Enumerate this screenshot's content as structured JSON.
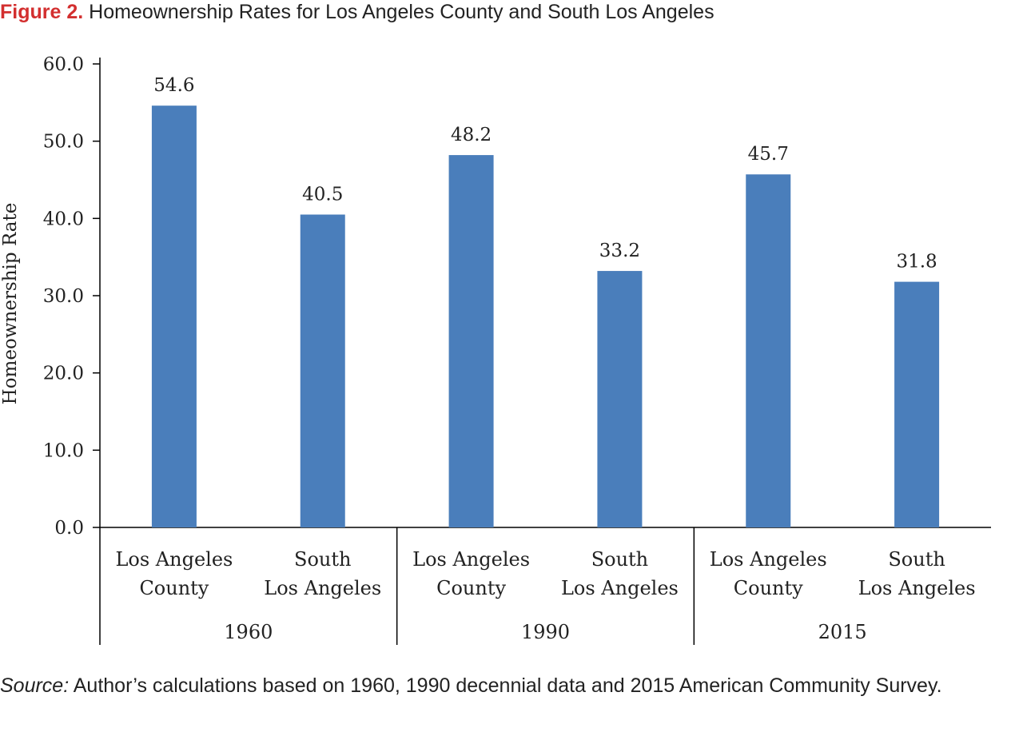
{
  "title": {
    "label": "Figure 2.",
    "text": "Homeownership Rates for Los Angeles County and South Los Angeles"
  },
  "source": {
    "label": "Source:",
    "text": "Author’s calculations based on 1960, 1990 decennial data and 2015 American Community Survey."
  },
  "colors": {
    "bar": "#4a7ebb",
    "axis": "#000000",
    "text": "#222222"
  },
  "chart_data": {
    "type": "bar",
    "title": "Homeownership Rates for Los Angeles County and South Los Angeles",
    "ylabel": "Homeownership Rate",
    "xlabel": "",
    "ylim": [
      0,
      60
    ],
    "yticks": [
      "0.0",
      "10.0",
      "20.0",
      "30.0",
      "40.0",
      "50.0",
      "60.0"
    ],
    "groups": [
      {
        "name": "1960",
        "bars": [
          {
            "label": [
              "Los Angeles",
              "County"
            ],
            "value": 54.6,
            "value_label": "54.6"
          },
          {
            "label": [
              "South",
              "Los Angeles"
            ],
            "value": 40.5,
            "value_label": "40.5"
          }
        ]
      },
      {
        "name": "1990",
        "bars": [
          {
            "label": [
              "Los Angeles",
              "County"
            ],
            "value": 48.2,
            "value_label": "48.2"
          },
          {
            "label": [
              "South",
              "Los Angeles"
            ],
            "value": 33.2,
            "value_label": "33.2"
          }
        ]
      },
      {
        "name": "2015",
        "bars": [
          {
            "label": [
              "Los Angeles",
              "County"
            ],
            "value": 45.7,
            "value_label": "45.7"
          },
          {
            "label": [
              "South",
              "Los Angeles"
            ],
            "value": 31.8,
            "value_label": "31.8"
          }
        ]
      }
    ],
    "grid": false,
    "legend": "none"
  }
}
